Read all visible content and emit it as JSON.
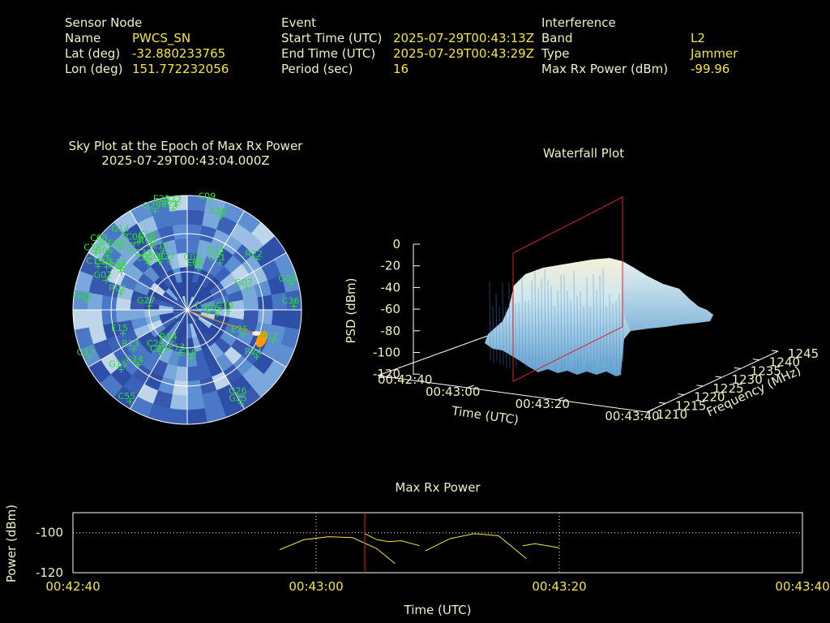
{
  "sensor": {
    "heading": "Sensor Node",
    "name_label": "Name",
    "name": "PWCS_SN",
    "lat_label": "Lat (deg)",
    "lat": "-32.880233765",
    "lon_label": "Lon (deg)",
    "lon": "151.772232056"
  },
  "event": {
    "heading": "Event",
    "start_label": "Start Time (UTC)",
    "start": "2025-07-29T00:43:13Z",
    "end_label": "End Time (UTC)",
    "end": "2025-07-29T00:43:29Z",
    "period_label": "Period (sec)",
    "period": "16"
  },
  "interference": {
    "heading": "Interference",
    "band_label": "Band",
    "band": "L2",
    "type_label": "Type",
    "type": "Jammer",
    "power_label": "Max Rx Power (dBm)",
    "power": "-99.96"
  },
  "colors": {
    "text": "#f2f0c0",
    "value": "#f5e63c",
    "sat": "#33dd33",
    "marker": "#dd2222",
    "jam": "#ff9900"
  },
  "chart_data": [
    {
      "type": "scatter",
      "title": "Sky Plot at the Epoch of Max Rx Power",
      "subtitle": "2025-07-29T00:43:04.000Z",
      "satellites": [
        {
          "id": "C22",
          "az": -6,
          "el": 7
        },
        {
          "id": "E21",
          "az": -8,
          "el": 10
        },
        {
          "id": "E23",
          "az": -12,
          "el": 5
        },
        {
          "id": "G29",
          "az": -18,
          "el": 8
        },
        {
          "id": "C09",
          "az": 12,
          "el": 3
        },
        {
          "id": "R30",
          "az": 20,
          "el": 12
        },
        {
          "id": "G14",
          "az": -40,
          "el": 12
        },
        {
          "id": "C06",
          "az": -36,
          "el": 24
        },
        {
          "id": "R08",
          "az": -30,
          "el": 32
        },
        {
          "id": "C16",
          "az": -28,
          "el": 28
        },
        {
          "id": "E05",
          "az": -48,
          "el": 18
        },
        {
          "id": "C07",
          "az": -44,
          "el": 26
        },
        {
          "id": "C15",
          "az": -22,
          "el": 40
        },
        {
          "id": "G06",
          "az": -56,
          "el": 14
        },
        {
          "id": "C38",
          "az": -58,
          "el": 5
        },
        {
          "id": "C08",
          "az": -52,
          "el": 5
        },
        {
          "id": "E33",
          "az": -58,
          "el": 28
        },
        {
          "id": "C10",
          "az": -62,
          "el": 18
        },
        {
          "id": "C02",
          "az": -40,
          "el": 42
        },
        {
          "id": "C01",
          "az": -30,
          "el": 46
        },
        {
          "id": "C33",
          "az": -38,
          "el": 38
        },
        {
          "id": "E27",
          "az": -20,
          "el": 50
        },
        {
          "id": "C03",
          "az": 10,
          "el": 52
        },
        {
          "id": "E04",
          "az": 15,
          "el": 56
        },
        {
          "id": "G11",
          "az": 30,
          "el": 40
        },
        {
          "id": "C21",
          "az": 35,
          "el": 45
        },
        {
          "id": "R22",
          "az": 54,
          "el": 22
        },
        {
          "id": "G07",
          "az": 70,
          "el": 40
        },
        {
          "id": "G08",
          "az": 76,
          "el": 6
        },
        {
          "id": "C36",
          "az": 88,
          "el": 6
        },
        {
          "id": "C39",
          "az": 92,
          "el": 58
        },
        {
          "id": "C40",
          "az": 96,
          "el": 74
        },
        {
          "id": "C26",
          "az": 98,
          "el": 66
        },
        {
          "id": "E25",
          "az": 114,
          "el": 42
        },
        {
          "id": "R12",
          "az": 110,
          "el": 18
        },
        {
          "id": "R24",
          "az": 124,
          "el": 24
        },
        {
          "id": "G26",
          "az": 148,
          "el": 10
        },
        {
          "id": "G25",
          "az": 150,
          "el": 5
        },
        {
          "id": "E13",
          "az": 190,
          "el": 56
        },
        {
          "id": "E18",
          "az": 175,
          "el": 52
        },
        {
          "id": "C14",
          "az": 222,
          "el": 32
        },
        {
          "id": "C28",
          "az": 210,
          "el": 50
        },
        {
          "id": "C29",
          "az": 216,
          "el": 52
        },
        {
          "id": "R13",
          "az": 234,
          "el": 38
        },
        {
          "id": "G15",
          "az": 228,
          "el": 20
        },
        {
          "id": "C55",
          "az": 212,
          "el": 5
        },
        {
          "id": "E15",
          "az": 250,
          "el": 36
        },
        {
          "id": "G05",
          "az": 275,
          "el": 10
        },
        {
          "id": "R02",
          "az": 284,
          "el": 36
        },
        {
          "id": "G02",
          "az": 290,
          "el": 22
        },
        {
          "id": "C23",
          "az": 300,
          "el": 30
        },
        {
          "id": "C19",
          "az": 296,
          "el": 12
        },
        {
          "id": "G27",
          "az": 276,
          "el": 60
        },
        {
          "id": "G13",
          "az": 244,
          "el": 4
        },
        {
          "id": "R14",
          "az": 206,
          "el": 62
        }
      ]
    },
    {
      "type": "area",
      "title": "Waterfall Plot",
      "xlabel": "Time (UTC)",
      "ylabel": "Frequency (MHz)",
      "zlabel": "PSD (dBm)",
      "x_ticks": [
        "00:42:40",
        "00:43:00",
        "00:43:20",
        "00:43:40"
      ],
      "y_ticks": [
        "1210",
        "1215",
        "1220",
        "1225",
        "1230",
        "1235",
        "1240",
        "1245"
      ],
      "z_ticks": [
        "0",
        "-20",
        "-40",
        "-60",
        "-80",
        "-100",
        "-120"
      ],
      "zlim": [
        -120,
        0
      ],
      "marker_time": "00:43:04"
    },
    {
      "type": "line",
      "title": "Max Rx Power",
      "xlabel": "Time (UTC)",
      "ylabel": "Power (dBm)",
      "x_ticks": [
        "00:42:40",
        "00:43:00",
        "00:43:20",
        "00:43:40"
      ],
      "y_ticks": [
        "-100",
        "-120"
      ],
      "xlim": [
        0,
        60
      ],
      "ylim": [
        -120,
        -90
      ],
      "marker_x": 24,
      "segments": [
        [
          [
            17,
            -108.5
          ],
          [
            19,
            -103.5
          ],
          [
            21,
            -102
          ],
          [
            23,
            -102.5
          ],
          [
            25,
            -108
          ],
          [
            26.5,
            -115.5
          ]
        ],
        [
          [
            24,
            -100.5
          ],
          [
            25,
            -103.5
          ],
          [
            26,
            -104.5
          ],
          [
            27,
            -104
          ],
          [
            28.5,
            -106.5
          ]
        ],
        [
          [
            29,
            -109
          ],
          [
            31,
            -103
          ],
          [
            33,
            -100.5
          ],
          [
            35,
            -101.5
          ],
          [
            37.3,
            -113
          ]
        ],
        [
          [
            37,
            -106.5
          ],
          [
            38,
            -105.5
          ],
          [
            40,
            -107.5
          ]
        ]
      ]
    }
  ]
}
